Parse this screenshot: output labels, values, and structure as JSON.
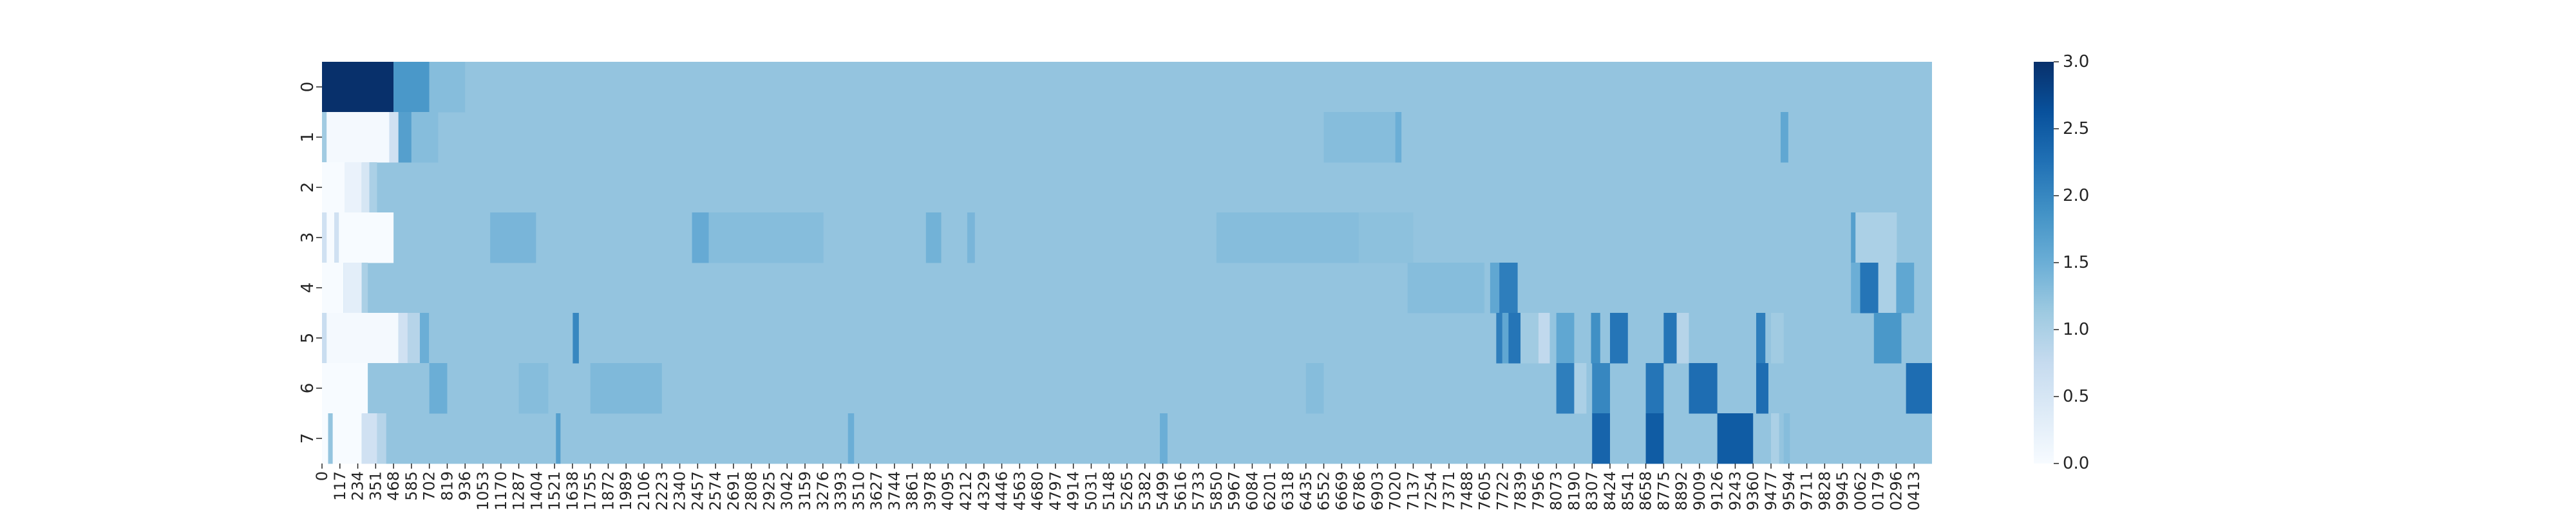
{
  "chart_data": {
    "type": "heatmap",
    "title": "",
    "xlabel": "",
    "ylabel": "",
    "colormap": "Blues",
    "colormap_stops": [
      "#f7fbff",
      "#deebf7",
      "#c6dbef",
      "#9ecae1",
      "#6baed6",
      "#4292c6",
      "#2171b5",
      "#08519c",
      "#08306b"
    ],
    "vmin": 0.0,
    "vmax": 3.0,
    "colorbar_ticks": [
      "0.0",
      "0.5",
      "1.0",
      "1.5",
      "2.0",
      "2.5",
      "3.0"
    ],
    "rows": [
      "0",
      "1",
      "2",
      "3",
      "4",
      "5",
      "6",
      "7"
    ],
    "x_tick_labels": [
      "0",
      "117",
      "234",
      "351",
      "468",
      "585",
      "702",
      "819",
      "936",
      "1053",
      "1170",
      "1287",
      "1404",
      "1521",
      "1638",
      "1755",
      "1872",
      "1989",
      "2106",
      "2223",
      "2340",
      "2457",
      "2574",
      "2691",
      "2808",
      "2925",
      "3042",
      "3159",
      "3276",
      "3393",
      "3510",
      "3627",
      "3744",
      "3861",
      "3978",
      "4095",
      "4212",
      "4329",
      "4446",
      "4563",
      "4680",
      "4797",
      "4914",
      "5031",
      "5148",
      "5265",
      "5382",
      "5499",
      "5616",
      "5733",
      "5850",
      "5967",
      "6084",
      "6201",
      "6318",
      "6435",
      "6552",
      "6669",
      "6786",
      "6903",
      "7020",
      "7137",
      "7254",
      "7371",
      "7488",
      "7605",
      "7722",
      "7839",
      "7956",
      "8073",
      "8190",
      "8307",
      "8424",
      "8541",
      "8658",
      "8775",
      "8892",
      "9009",
      "9126",
      "9243",
      "9360",
      "9477",
      "9594",
      "9711",
      "9828",
      "9945",
      "10062",
      "10179",
      "10296",
      "10413"
    ],
    "x_tick_labels_shown": [
      "0",
      "117",
      "234",
      "351",
      "468",
      "585",
      "702",
      "819",
      "936",
      "1053",
      "1170",
      "1287",
      "1404",
      "1521",
      "1638",
      "1755",
      "1872",
      "1989",
      "2106",
      "2223",
      "2340",
      "2457",
      "2574",
      "2691",
      "2808",
      "2925",
      "3042",
      "3159",
      "3276",
      "3393",
      "3510",
      "3627",
      "3744",
      "3861",
      "3978",
      "4095",
      "4212",
      "4329",
      "4446",
      "4563",
      "4680",
      "4797",
      "4914",
      "5031",
      "5148",
      "5265",
      "5382",
      "5499",
      "5616",
      "5733",
      "5850",
      "5967",
      "6084",
      "6201",
      "6318",
      "6435",
      "6552",
      "6669",
      "6786",
      "6903",
      "7020",
      "7137",
      "7254",
      "7371",
      "7488",
      "7605",
      "7722",
      "7839",
      "7956",
      "8073",
      "8190",
      "8307",
      "8424",
      "8541",
      "8658",
      "8775",
      "8892",
      "9009",
      "9126",
      "9243",
      "9360",
      "9477",
      "9594",
      "9711",
      "9828",
      "9945",
      "0062",
      "0179",
      "0296",
      "0413"
    ],
    "x_max": 10530,
    "baseline_value": 1.2,
    "baseline_overrides": [
      {
        "row": 3,
        "x_range": [
          6669,
          7137
        ],
        "value": 1.25
      },
      {
        "row": 4,
        "x_range": [
          7137,
          7605
        ],
        "value": 1.25
      }
    ],
    "features": [
      {
        "row": 0,
        "x_range": [
          0,
          468
        ],
        "value": 3.0
      },
      {
        "row": 0,
        "x_range": [
          468,
          702
        ],
        "value": 1.8
      },
      {
        "row": 0,
        "x_range": [
          702,
          936
        ],
        "value": 1.3
      },
      {
        "row": 1,
        "x_range": [
          0,
          30
        ],
        "value": 1.1
      },
      {
        "row": 1,
        "x_range": [
          30,
          440
        ],
        "value": 0.05
      },
      {
        "row": 1,
        "x_range": [
          440,
          500
        ],
        "value": 0.6
      },
      {
        "row": 1,
        "x_range": [
          500,
          585
        ],
        "value": 1.7
      },
      {
        "row": 1,
        "x_range": [
          585,
          760
        ],
        "value": 1.3
      },
      {
        "row": 1,
        "x_range": [
          6552,
          7020
        ],
        "value": 1.3
      },
      {
        "row": 1,
        "x_range": [
          7020,
          7060
        ],
        "value": 1.5
      },
      {
        "row": 1,
        "x_range": [
          9540,
          9590
        ],
        "value": 1.6
      },
      {
        "row": 2,
        "x_range": [
          0,
          150
        ],
        "value": 0.0
      },
      {
        "row": 2,
        "x_range": [
          150,
          260
        ],
        "value": 0.2
      },
      {
        "row": 2,
        "x_range": [
          260,
          310
        ],
        "value": 0.5
      },
      {
        "row": 2,
        "x_range": [
          310,
          360
        ],
        "value": 1.0
      },
      {
        "row": 3,
        "x_range": [
          0,
          30
        ],
        "value": 0.6
      },
      {
        "row": 3,
        "x_range": [
          30,
          80
        ],
        "value": 0.0
      },
      {
        "row": 3,
        "x_range": [
          80,
          110
        ],
        "value": 0.6
      },
      {
        "row": 3,
        "x_range": [
          110,
          468
        ],
        "value": 0.0
      },
      {
        "row": 3,
        "x_range": [
          1100,
          1400
        ],
        "value": 1.4
      },
      {
        "row": 3,
        "x_range": [
          2420,
          2530
        ],
        "value": 1.55
      },
      {
        "row": 3,
        "x_range": [
          2530,
          3280
        ],
        "value": 1.3
      },
      {
        "row": 3,
        "x_range": [
          3950,
          4050
        ],
        "value": 1.45
      },
      {
        "row": 3,
        "x_range": [
          4220,
          4270
        ],
        "value": 1.4
      },
      {
        "row": 3,
        "x_range": [
          5850,
          6780
        ],
        "value": 1.3
      },
      {
        "row": 3,
        "x_range": [
          10000,
          10030
        ],
        "value": 1.7
      },
      {
        "row": 3,
        "x_range": [
          10030,
          10300
        ],
        "value": 1.0
      },
      {
        "row": 4,
        "x_range": [
          0,
          140
        ],
        "value": 0.0
      },
      {
        "row": 4,
        "x_range": [
          140,
          260
        ],
        "value": 0.3
      },
      {
        "row": 4,
        "x_range": [
          260,
          300
        ],
        "value": 1.0
      },
      {
        "row": 4,
        "x_range": [
          7640,
          7700
        ],
        "value": 1.6
      },
      {
        "row": 4,
        "x_range": [
          7700,
          7820
        ],
        "value": 2.1
      },
      {
        "row": 4,
        "x_range": [
          7100,
          7600
        ],
        "value": 1.3
      },
      {
        "row": 4,
        "x_range": [
          10000,
          10060
        ],
        "value": 1.5
      },
      {
        "row": 4,
        "x_range": [
          10060,
          10179
        ],
        "value": 2.2
      },
      {
        "row": 4,
        "x_range": [
          10179,
          10296
        ],
        "value": 1.0
      },
      {
        "row": 4,
        "x_range": [
          10296,
          10413
        ],
        "value": 1.6
      },
      {
        "row": 5,
        "x_range": [
          0,
          30
        ],
        "value": 0.7
      },
      {
        "row": 5,
        "x_range": [
          30,
          500
        ],
        "value": 0.05
      },
      {
        "row": 5,
        "x_range": [
          500,
          560
        ],
        "value": 0.6
      },
      {
        "row": 5,
        "x_range": [
          560,
          640
        ],
        "value": 0.9
      },
      {
        "row": 5,
        "x_range": [
          640,
          700
        ],
        "value": 1.5
      },
      {
        "row": 5,
        "x_range": [
          1640,
          1680
        ],
        "value": 2.0
      },
      {
        "row": 5,
        "x_range": [
          7680,
          7720
        ],
        "value": 2.1
      },
      {
        "row": 5,
        "x_range": [
          7720,
          7760
        ],
        "value": 1.6
      },
      {
        "row": 5,
        "x_range": [
          7760,
          7839
        ],
        "value": 2.2
      },
      {
        "row": 5,
        "x_range": [
          7839,
          7956
        ],
        "value": 1.1
      },
      {
        "row": 5,
        "x_range": [
          7956,
          8030
        ],
        "value": 0.8
      },
      {
        "row": 5,
        "x_range": [
          8073,
          8190
        ],
        "value": 1.6
      },
      {
        "row": 5,
        "x_range": [
          8300,
          8360
        ],
        "value": 1.9
      },
      {
        "row": 5,
        "x_range": [
          8424,
          8541
        ],
        "value": 2.2
      },
      {
        "row": 5,
        "x_range": [
          8775,
          8860
        ],
        "value": 2.2
      },
      {
        "row": 5,
        "x_range": [
          8860,
          8940
        ],
        "value": 0.9
      },
      {
        "row": 5,
        "x_range": [
          9380,
          9440
        ],
        "value": 2.1
      },
      {
        "row": 5,
        "x_range": [
          9477,
          9560
        ],
        "value": 1.1
      },
      {
        "row": 5,
        "x_range": [
          10150,
          10330
        ],
        "value": 1.8
      },
      {
        "row": 6,
        "x_range": [
          0,
          300
        ],
        "value": 0.0
      },
      {
        "row": 6,
        "x_range": [
          300,
          702
        ],
        "value": 1.2
      },
      {
        "row": 6,
        "x_range": [
          702,
          819
        ],
        "value": 1.5
      },
      {
        "row": 6,
        "x_range": [
          1287,
          1480
        ],
        "value": 1.3
      },
      {
        "row": 6,
        "x_range": [
          1755,
          2223
        ],
        "value": 1.35
      },
      {
        "row": 6,
        "x_range": [
          6435,
          6552
        ],
        "value": 1.3
      },
      {
        "row": 6,
        "x_range": [
          8073,
          8190
        ],
        "value": 2.1
      },
      {
        "row": 6,
        "x_range": [
          8190,
          8270
        ],
        "value": 1.0
      },
      {
        "row": 6,
        "x_range": [
          8307,
          8424
        ],
        "value": 2.0
      },
      {
        "row": 6,
        "x_range": [
          8658,
          8775
        ],
        "value": 2.2
      },
      {
        "row": 6,
        "x_range": [
          8940,
          9126
        ],
        "value": 2.3
      },
      {
        "row": 6,
        "x_range": [
          9380,
          9460
        ],
        "value": 2.3
      },
      {
        "row": 6,
        "x_range": [
          10360,
          10530
        ],
        "value": 2.3
      },
      {
        "row": 7,
        "x_range": [
          0,
          40
        ],
        "value": 0.0
      },
      {
        "row": 7,
        "x_range": [
          40,
          70
        ],
        "value": 1.2
      },
      {
        "row": 7,
        "x_range": [
          70,
          260
        ],
        "value": 0.0
      },
      {
        "row": 7,
        "x_range": [
          260,
          360
        ],
        "value": 0.6
      },
      {
        "row": 7,
        "x_range": [
          360,
          420
        ],
        "value": 0.9
      },
      {
        "row": 7,
        "x_range": [
          1530,
          1560
        ],
        "value": 1.7
      },
      {
        "row": 7,
        "x_range": [
          3440,
          3480
        ],
        "value": 1.5
      },
      {
        "row": 7,
        "x_range": [
          5480,
          5530
        ],
        "value": 1.5
      },
      {
        "row": 7,
        "x_range": [
          8307,
          8424
        ],
        "value": 2.4
      },
      {
        "row": 7,
        "x_range": [
          8658,
          8775
        ],
        "value": 2.5
      },
      {
        "row": 7,
        "x_range": [
          9126,
          9360
        ],
        "value": 2.5
      },
      {
        "row": 7,
        "x_range": [
          9477,
          9530
        ],
        "value": 1.0
      },
      {
        "row": 7,
        "x_range": [
          9560,
          9600
        ],
        "value": 1.3
      }
    ]
  }
}
